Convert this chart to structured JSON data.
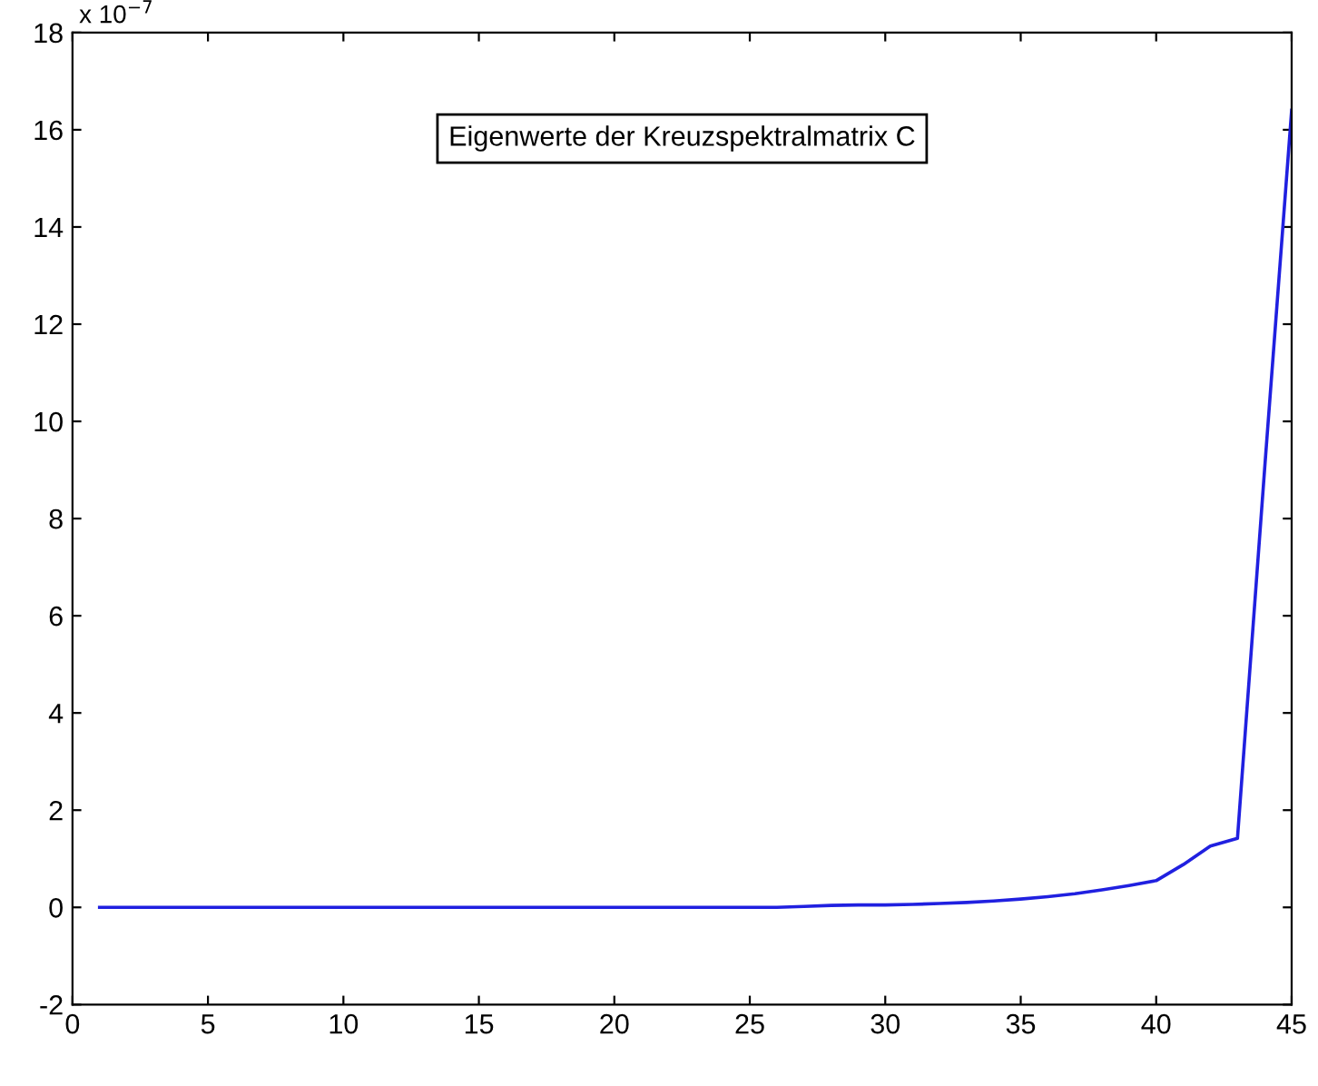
{
  "chart_data": {
    "type": "line",
    "x": [
      1,
      2,
      3,
      4,
      5,
      6,
      7,
      8,
      9,
      10,
      11,
      12,
      13,
      14,
      15,
      16,
      17,
      18,
      19,
      20,
      21,
      22,
      23,
      24,
      25,
      26,
      27,
      28,
      29,
      30,
      31,
      32,
      33,
      34,
      35,
      36,
      37,
      38,
      39,
      40,
      41,
      42,
      43,
      44,
      45
    ],
    "series": [
      {
        "name": "Eigenwerte der Kreuzspektralmatrix C",
        "color": "#2020e0",
        "values": [
          0,
          0,
          0,
          0,
          0,
          0,
          0,
          0,
          0,
          0,
          0,
          0,
          0,
          0,
          0,
          0,
          0,
          0,
          0,
          0,
          0,
          0,
          0,
          0,
          0,
          0,
          0.02,
          0.04,
          0.05,
          0.05,
          0.06,
          0.08,
          0.1,
          0.13,
          0.17,
          0.22,
          0.28,
          0.36,
          0.45,
          0.55,
          0.88,
          1.26,
          1.42,
          9,
          16.4
        ]
      }
    ],
    "xlim": [
      0,
      45
    ],
    "ylim": [
      -2,
      18
    ],
    "xticks": [
      0,
      5,
      10,
      15,
      20,
      25,
      30,
      35,
      40,
      45
    ],
    "yticks": [
      -2,
      0,
      2,
      4,
      6,
      8,
      10,
      12,
      14,
      16,
      18
    ],
    "annotations": [
      "x 10$^{−7}$"
    ],
    "legend": "top",
    "grid": false,
    "marker": "none",
    "line_style": "solid"
  }
}
